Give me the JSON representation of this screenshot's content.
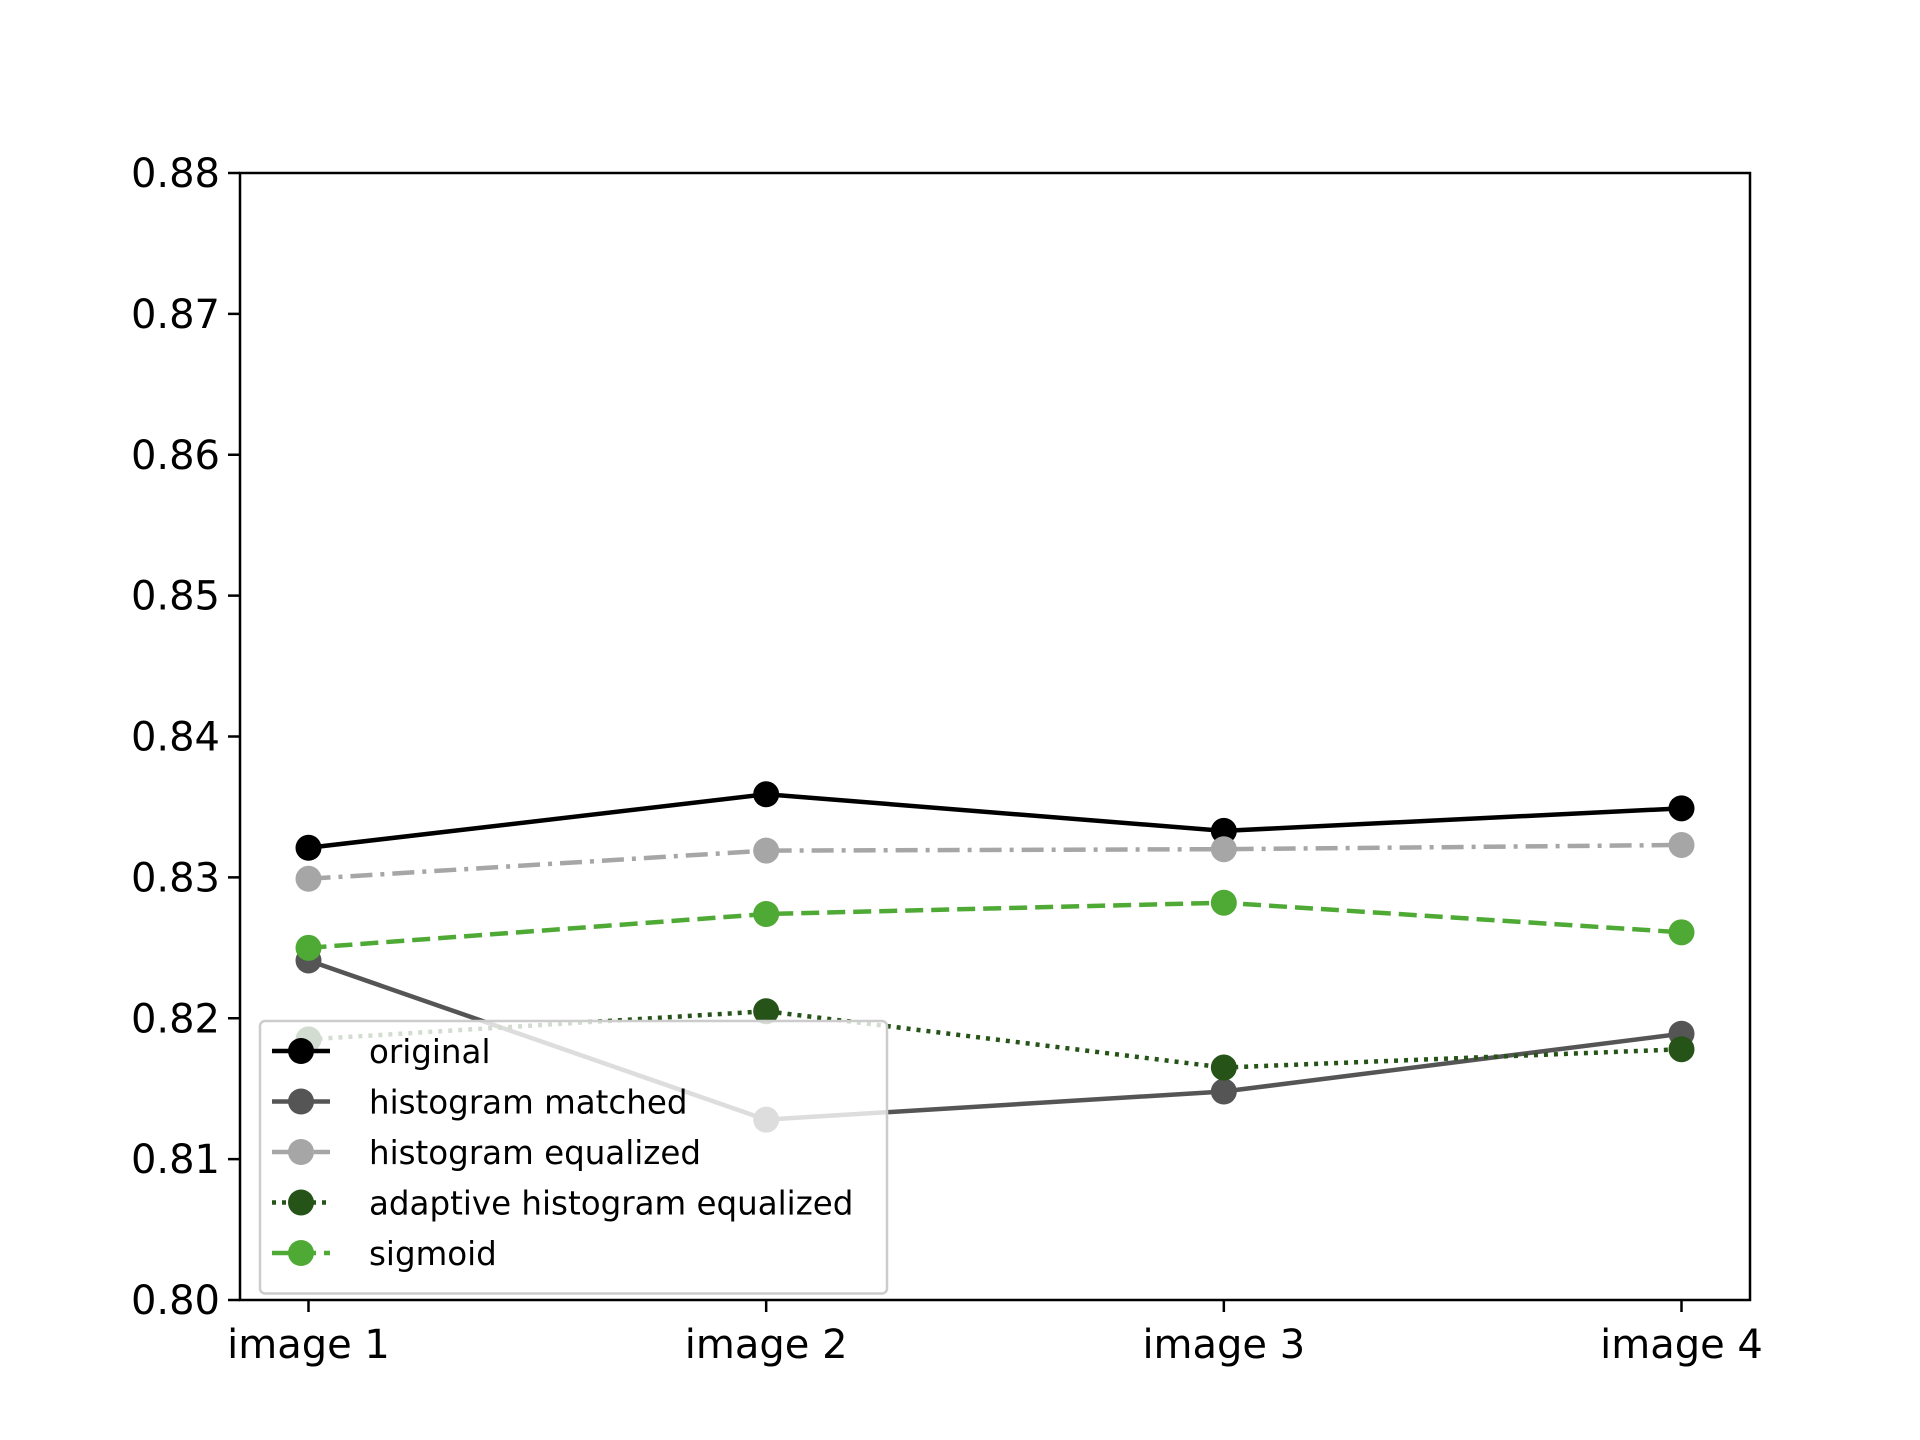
{
  "chart_data": {
    "type": "line",
    "categories": [
      "image 1",
      "image 2",
      "image 3",
      "image 4"
    ],
    "ylim": [
      0.8,
      0.88
    ],
    "yticks": [
      "0.80",
      "0.81",
      "0.82",
      "0.83",
      "0.84",
      "0.85",
      "0.86",
      "0.87",
      "0.88"
    ],
    "grid": false,
    "legend_position": "lower-left",
    "series": [
      {
        "name": "original",
        "values": [
          0.8321,
          0.8359,
          0.8333,
          0.8349
        ],
        "color": "#000000",
        "dash": "solid"
      },
      {
        "name": "histogram matched",
        "values": [
          0.8241,
          0.8128,
          0.8148,
          0.8189
        ],
        "color": "#555555",
        "dash": "solid"
      },
      {
        "name": "histogram equalized",
        "values": [
          0.8299,
          0.8319,
          0.832,
          0.8323
        ],
        "color": "#a6a6a6",
        "dash": "dashdot"
      },
      {
        "name": "adaptive histogram equalized",
        "values": [
          0.8185,
          0.8205,
          0.8165,
          0.8178
        ],
        "color": "#265318",
        "dash": "dotted"
      },
      {
        "name": "sigmoid",
        "values": [
          0.825,
          0.8274,
          0.8282,
          0.8261
        ],
        "color": "#4faa35",
        "dash": "dashed"
      }
    ]
  }
}
